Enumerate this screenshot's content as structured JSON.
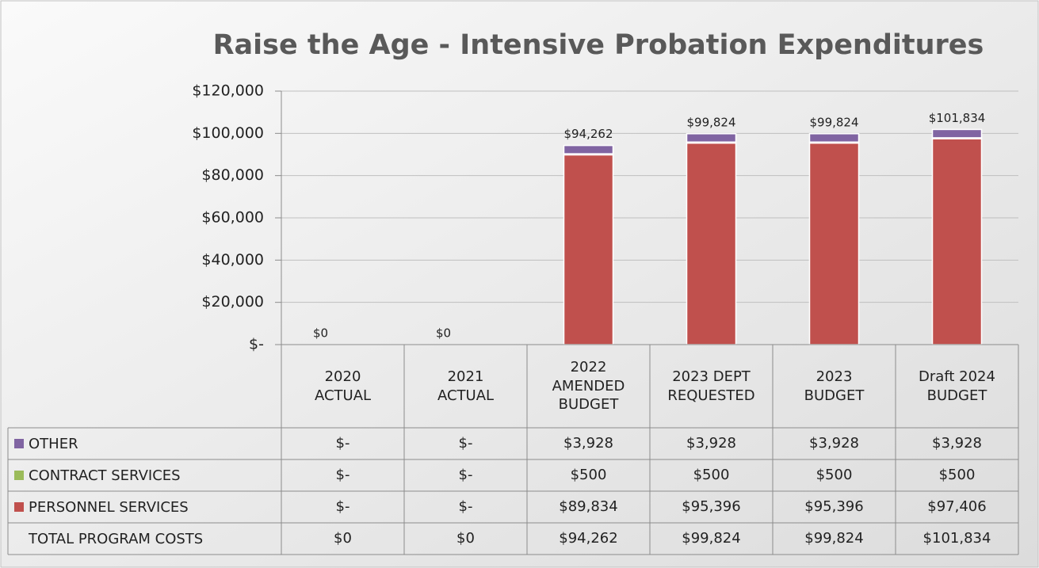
{
  "chart_data": {
    "type": "stacked_bar",
    "title": "Raise the Age - Intensive Probation Expenditures",
    "categories": [
      "2020 ACTUAL",
      "2021 ACTUAL",
      "2022 AMENDED BUDGET",
      "2023 DEPT REQUESTED",
      "2023 BUDGET",
      "Draft 2024 BUDGET"
    ],
    "series": [
      {
        "name": "OTHER",
        "color": "#8064a2",
        "values": [
          0,
          0,
          3928,
          3928,
          3928,
          3928
        ],
        "value_labels": [
          "$-",
          "$-",
          "$3,928",
          "$3,928",
          "$3,928",
          "$3,928"
        ]
      },
      {
        "name": "CONTRACT SERVICES",
        "color": "#9bbb59",
        "values": [
          0,
          0,
          500,
          500,
          500,
          500
        ],
        "value_labels": [
          "$-",
          "$-",
          "$500",
          "$500",
          "$500",
          "$500"
        ]
      },
      {
        "name": "PERSONNEL SERVICES",
        "color": "#c0504d",
        "values": [
          0,
          0,
          89834,
          95396,
          95396,
          97406
        ],
        "value_labels": [
          "$-",
          "$-",
          "$89,834",
          "$95,396",
          "$95,396",
          "$97,406"
        ]
      }
    ],
    "totals": {
      "name": "TOTAL PROGRAM COSTS",
      "values": [
        0,
        0,
        94262,
        99824,
        99824,
        101834
      ],
      "value_labels": [
        "$0",
        "$0",
        "$94,262",
        "$99,824",
        "$99,824",
        "$101,834"
      ]
    },
    "ylim": [
      0,
      120000
    ],
    "yticks": [
      {
        "value": 0,
        "label": "$-"
      },
      {
        "value": 20000,
        "label": "$20,000"
      },
      {
        "value": 40000,
        "label": "$40,000"
      },
      {
        "value": 60000,
        "label": "$60,000"
      },
      {
        "value": 80000,
        "label": "$80,000"
      },
      {
        "value": 100000,
        "label": "$100,000"
      },
      {
        "value": 120000,
        "label": "$120,000"
      }
    ],
    "grid": true
  }
}
